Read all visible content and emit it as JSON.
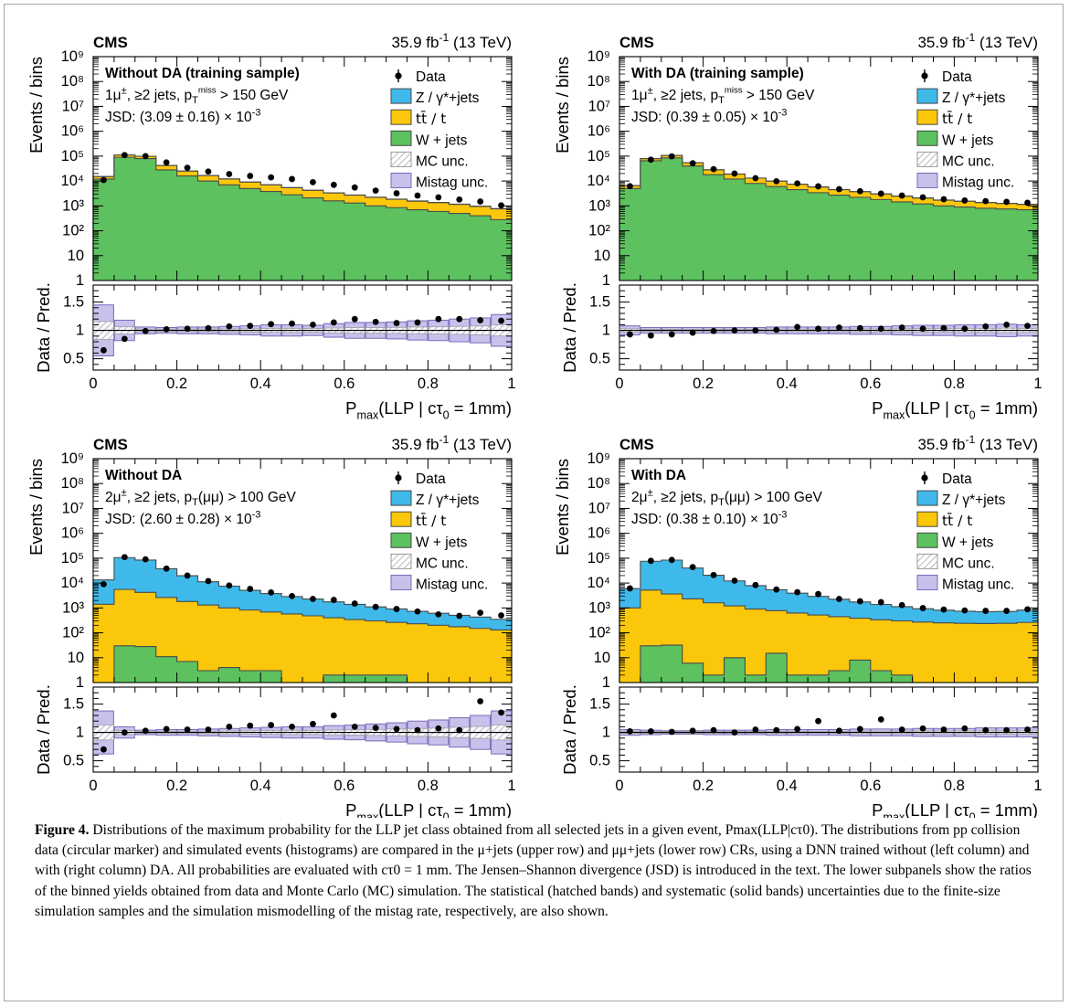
{
  "colors": {
    "z_jets": "#3fb9ea",
    "ttbar": "#fbc70b",
    "w_jets": "#5cc15e",
    "mistag": "#c9c0ec",
    "mistag_edge": "#7b6bb8",
    "mc_unc_edge": "#9a9a9a",
    "outline": "#4a4a4a",
    "data": "#000000"
  },
  "legend": {
    "entries": [
      {
        "label": "Data",
        "kind": "data"
      },
      {
        "label": "Z / γ*+jets",
        "kind": "z"
      },
      {
        "label": "tt̄ / t",
        "kind": "tt"
      },
      {
        "label": "W + jets",
        "kind": "w"
      },
      {
        "label": "MC unc.",
        "kind": "mcunc"
      },
      {
        "label": "Mistag unc.",
        "kind": "mistag"
      }
    ]
  },
  "chart_data": [
    {
      "type": "bar",
      "stacked": true,
      "log_y": true,
      "experiment": "CMS",
      "lumi": "35.9 fb-1 (13 TeV)",
      "title": "Without DA (training sample)",
      "selection": "1μ±, ≥2 jets, pTmiss > 150 GeV",
      "jsd": "JSD: (3.09 ± 0.16) × 10-3",
      "ylabel": "Events / bins",
      "ratio_ylabel": "Data / Pred.",
      "xlabel": "Pmax(LLP | cτ0 = 1mm)",
      "xlim": [
        0,
        1
      ],
      "ylim": [
        1,
        1000000000
      ],
      "ratio_ylim": [
        0.3,
        1.8
      ],
      "x_ticks": [
        "0",
        "0.2",
        "0.4",
        "0.6",
        "0.8",
        "1"
      ],
      "y_ticks": [
        "1",
        "10",
        "10²",
        "10³",
        "10⁴",
        "10⁵",
        "10⁶",
        "10⁷",
        "10⁸",
        "10⁹"
      ],
      "ratio_ticks": [
        "0.5",
        "1",
        "1.5"
      ],
      "bin_edges": [
        0,
        0.05,
        0.1,
        0.15,
        0.2,
        0.25,
        0.3,
        0.35,
        0.4,
        0.45,
        0.5,
        0.55,
        0.6,
        0.65,
        0.7,
        0.75,
        0.8,
        0.85,
        0.9,
        0.95,
        1
      ],
      "series": [
        {
          "name": "W + jets",
          "values": [
            12000,
            90000,
            80000,
            28000,
            16000,
            10000,
            7000,
            5000,
            3800,
            2800,
            2100,
            1600,
            1300,
            1000,
            850,
            700,
            600,
            500,
            400,
            280
          ]
        },
        {
          "name": "tt̄ / t",
          "values": [
            3000,
            20000,
            18000,
            14000,
            9000,
            6500,
            5000,
            4000,
            3200,
            2600,
            2100,
            1700,
            1400,
            1200,
            1000,
            850,
            750,
            650,
            550,
            480
          ]
        },
        {
          "name": "Z / γ*+jets",
          "values": [
            200,
            800,
            600,
            400,
            250,
            180,
            140,
            110,
            90,
            70,
            60,
            50,
            40,
            35,
            30,
            25,
            22,
            20,
            18,
            16
          ]
        }
      ],
      "data": [
        11000,
        110000,
        100000,
        56000,
        34000,
        24000,
        19000,
        16000,
        14000,
        12000,
        9000,
        7000,
        5500,
        4100,
        3200,
        2600,
        2200,
        1800,
        1500,
        1050
      ],
      "ratio": [
        0.65,
        0.85,
        0.99,
        1.02,
        1.03,
        1.04,
        1.07,
        1.08,
        1.11,
        1.12,
        1.1,
        1.14,
        1.2,
        1.15,
        1.13,
        1.14,
        1.2,
        1.2,
        1.18,
        1.17
      ],
      "mistag_unc": [
        0.45,
        0.18,
        0.06,
        0.05,
        0.06,
        0.06,
        0.07,
        0.08,
        0.1,
        0.1,
        0.09,
        0.12,
        0.14,
        0.14,
        0.15,
        0.17,
        0.18,
        0.2,
        0.22,
        0.28
      ]
    },
    {
      "type": "bar",
      "stacked": true,
      "log_y": true,
      "experiment": "CMS",
      "lumi": "35.9 fb-1 (13 TeV)",
      "title": "With DA (training sample)",
      "selection": "1μ±, ≥2 jets, pTmiss > 150 GeV",
      "jsd": "JSD: (0.39 ± 0.05) × 10-3",
      "ylabel": "Events / bins",
      "ratio_ylabel": "Data / Pred.",
      "xlabel": "Pmax(LLP | cτ0 = 1mm)",
      "xlim": [
        0,
        1
      ],
      "ylim": [
        1,
        1000000000
      ],
      "ratio_ylim": [
        0.3,
        1.8
      ],
      "x_ticks": [
        "0",
        "0.2",
        "0.4",
        "0.6",
        "0.8",
        "1"
      ],
      "y_ticks": [
        "1",
        "10",
        "10²",
        "10³",
        "10⁴",
        "10⁵",
        "10⁶",
        "10⁷",
        "10⁸",
        "10⁹"
      ],
      "ratio_ticks": [
        "0.5",
        "1",
        "1.5"
      ],
      "bin_edges": [
        0,
        0.05,
        0.1,
        0.15,
        0.2,
        0.25,
        0.3,
        0.35,
        0.4,
        0.45,
        0.5,
        0.55,
        0.6,
        0.65,
        0.7,
        0.75,
        0.8,
        0.85,
        0.9,
        0.95,
        1
      ],
      "series": [
        {
          "name": "W + jets",
          "values": [
            5000,
            65000,
            85000,
            40000,
            18000,
            12000,
            8000,
            6000,
            4500,
            3400,
            2700,
            2200,
            1800,
            1450,
            1200,
            1000,
            900,
            800,
            750,
            700
          ]
        },
        {
          "name": "tt̄ / t",
          "values": [
            1500,
            14000,
            21000,
            14000,
            10000,
            7000,
            5000,
            3800,
            2900,
            2300,
            1800,
            1500,
            1200,
            1000,
            850,
            700,
            620,
            560,
            500,
            450
          ]
        },
        {
          "name": "Z / γ*+jets",
          "values": [
            100,
            600,
            700,
            450,
            280,
            200,
            150,
            110,
            90,
            70,
            60,
            50,
            40,
            35,
            30,
            25,
            22,
            20,
            18,
            16
          ]
        }
      ],
      "data": [
        6200,
        72000,
        98000,
        52000,
        30000,
        20000,
        13000,
        9800,
        8000,
        6100,
        4700,
        3900,
        3100,
        2600,
        2200,
        1850,
        1650,
        1550,
        1450,
        1330
      ],
      "ratio": [
        0.93,
        0.91,
        0.93,
        0.96,
        0.99,
        1.0,
        1.0,
        1.01,
        1.06,
        1.03,
        1.05,
        1.04,
        1.03,
        1.05,
        1.03,
        1.04,
        1.03,
        1.07,
        1.1,
        1.08
      ],
      "mistag_unc": [
        0.08,
        0.05,
        0.05,
        0.05,
        0.05,
        0.05,
        0.05,
        0.06,
        0.06,
        0.06,
        0.06,
        0.07,
        0.07,
        0.08,
        0.09,
        0.09,
        0.1,
        0.1,
        0.11,
        0.1
      ]
    },
    {
      "type": "bar",
      "stacked": true,
      "log_y": true,
      "experiment": "CMS",
      "lumi": "35.9 fb-1 (13 TeV)",
      "title": "Without DA",
      "selection": "2μ±, ≥2 jets, pT(μμ) > 100 GeV",
      "jsd": "JSD: (2.60 ± 0.28) × 10-3",
      "ylabel": "Events / bins",
      "ratio_ylabel": "Data / Pred.",
      "xlabel": "Pmax(LLP | cτ0 = 1mm)",
      "xlim": [
        0,
        1
      ],
      "ylim": [
        1,
        1000000000
      ],
      "ratio_ylim": [
        0.3,
        1.8
      ],
      "x_ticks": [
        "0",
        "0.2",
        "0.4",
        "0.6",
        "0.8",
        "1"
      ],
      "y_ticks": [
        "1",
        "10",
        "10²",
        "10³",
        "10⁴",
        "10⁵",
        "10⁶",
        "10⁷",
        "10⁸",
        "10⁹"
      ],
      "ratio_ticks": [
        "0.5",
        "1",
        "1.5"
      ],
      "bin_edges": [
        0,
        0.05,
        0.1,
        0.15,
        0.2,
        0.25,
        0.3,
        0.35,
        0.4,
        0.45,
        0.5,
        0.55,
        0.6,
        0.65,
        0.7,
        0.75,
        0.8,
        0.85,
        0.9,
        0.95,
        1
      ],
      "series": [
        {
          "name": "W + jets",
          "values": [
            0,
            30,
            28,
            11,
            7,
            3,
            4,
            3,
            3,
            0,
            0,
            2,
            2,
            2,
            2,
            0,
            0,
            0,
            0,
            0
          ]
        },
        {
          "name": "tt̄ / t",
          "values": [
            1400,
            5500,
            4200,
            2600,
            1800,
            1300,
            1000,
            820,
            680,
            570,
            480,
            400,
            340,
            300,
            260,
            230,
            200,
            175,
            150,
            130
          ]
        },
        {
          "name": "Z / γ*+jets",
          "values": [
            12000,
            100000,
            80000,
            35000,
            18000,
            10000,
            6500,
            4300,
            3100,
            2300,
            1800,
            1350,
            1050,
            800,
            650,
            500,
            410,
            330,
            280,
            220
          ]
        }
      ],
      "data": [
        9000,
        110000,
        90000,
        38000,
        20000,
        12000,
        8000,
        5800,
        4200,
        3000,
        2300,
        2100,
        1500,
        1100,
        900,
        720,
        550,
        480,
        640,
        500
      ],
      "ratio": [
        0.7,
        1.0,
        1.03,
        1.06,
        1.05,
        1.05,
        1.1,
        1.12,
        1.13,
        1.1,
        1.15,
        1.3,
        1.1,
        1.08,
        1.06,
        1.04,
        1.07,
        1.04,
        1.55,
        1.35
      ],
      "mistag_unc": [
        0.38,
        0.1,
        0.04,
        0.05,
        0.05,
        0.06,
        0.07,
        0.08,
        0.09,
        0.1,
        0.1,
        0.12,
        0.13,
        0.15,
        0.17,
        0.2,
        0.22,
        0.26,
        0.3,
        0.38
      ]
    },
    {
      "type": "bar",
      "stacked": true,
      "log_y": true,
      "experiment": "CMS",
      "lumi": "35.9 fb-1 (13 TeV)",
      "title": "With DA",
      "selection": "2μ±, ≥2 jets, pT(μμ) > 100 GeV",
      "jsd": "JSD: (0.38 ± 0.10) × 10-3",
      "ylabel": "Events / bins",
      "ratio_ylabel": "Data / Pred.",
      "xlabel": "Pmax(LLP | cτ0 = 1mm)",
      "xlim": [
        0,
        1
      ],
      "ylim": [
        1,
        1000000000
      ],
      "ratio_ylim": [
        0.3,
        1.8
      ],
      "x_ticks": [
        "0",
        "0.2",
        "0.4",
        "0.6",
        "0.8",
        "1"
      ],
      "y_ticks": [
        "1",
        "10",
        "10²",
        "10³",
        "10⁴",
        "10⁵",
        "10⁶",
        "10⁷",
        "10⁸",
        "10⁹"
      ],
      "ratio_ticks": [
        "0.5",
        "1",
        "1.5"
      ],
      "bin_edges": [
        0,
        0.05,
        0.1,
        0.15,
        0.2,
        0.25,
        0.3,
        0.35,
        0.4,
        0.45,
        0.5,
        0.55,
        0.6,
        0.65,
        0.7,
        0.75,
        0.8,
        0.85,
        0.9,
        0.95,
        1
      ],
      "series": [
        {
          "name": "W + jets",
          "values": [
            0,
            30,
            32,
            6,
            2,
            10,
            2,
            15,
            2,
            2,
            3,
            8,
            3,
            2,
            0,
            0,
            0,
            0,
            0,
            0
          ]
        },
        {
          "name": "tt̄ / t",
          "values": [
            1000,
            5200,
            3600,
            2300,
            1600,
            1200,
            900,
            760,
            620,
            520,
            440,
            380,
            330,
            300,
            270,
            250,
            240,
            235,
            240,
            260
          ]
        },
        {
          "name": "Z / γ*+jets",
          "values": [
            5000,
            70000,
            80000,
            38000,
            19000,
            11000,
            7000,
            4600,
            3300,
            2400,
            1800,
            1350,
            1050,
            820,
            660,
            560,
            500,
            470,
            480,
            560
          ]
        }
      ],
      "data": [
        6100,
        78000,
        85000,
        44000,
        21000,
        12500,
        8300,
        5500,
        4300,
        3600,
        2300,
        1850,
        1700,
        1300,
        980,
        860,
        790,
        760,
        760,
        880
      ],
      "ratio": [
        1.02,
        1.02,
        1.01,
        1.03,
        1.04,
        1.0,
        1.05,
        1.04,
        1.06,
        1.2,
        1.03,
        1.06,
        1.23,
        1.05,
        1.07,
        1.05,
        1.07,
        1.04,
        1.04,
        1.05
      ],
      "mistag_unc": [
        0.05,
        0.04,
        0.03,
        0.03,
        0.04,
        0.04,
        0.04,
        0.05,
        0.05,
        0.05,
        0.05,
        0.06,
        0.06,
        0.06,
        0.07,
        0.07,
        0.07,
        0.08,
        0.08,
        0.08
      ]
    }
  ],
  "caption": {
    "label": "Figure 4.",
    "text": "Distributions of the maximum probability for the LLP jet class obtained from all selected jets in a given event, Pmax(LLP|cτ0). The distributions from pp collision data (circular marker) and simulated events (histograms) are compared in the μ+jets (upper row) and μμ+jets (lower row) CRs, using a DNN trained without (left column) and with (right column) DA. All probabilities are evaluated with cτ0 = 1 mm. The Jensen–Shannon divergence (JSD) is introduced in the text. The lower subpanels show the ratios of the binned yields obtained from data and Monte Carlo (MC) simulation. The statistical (hatched bands) and systematic (solid bands) uncertainties due to the finite-size simulation samples and the simulation mismodelling of the mistag rate, respectively, are also shown."
  }
}
